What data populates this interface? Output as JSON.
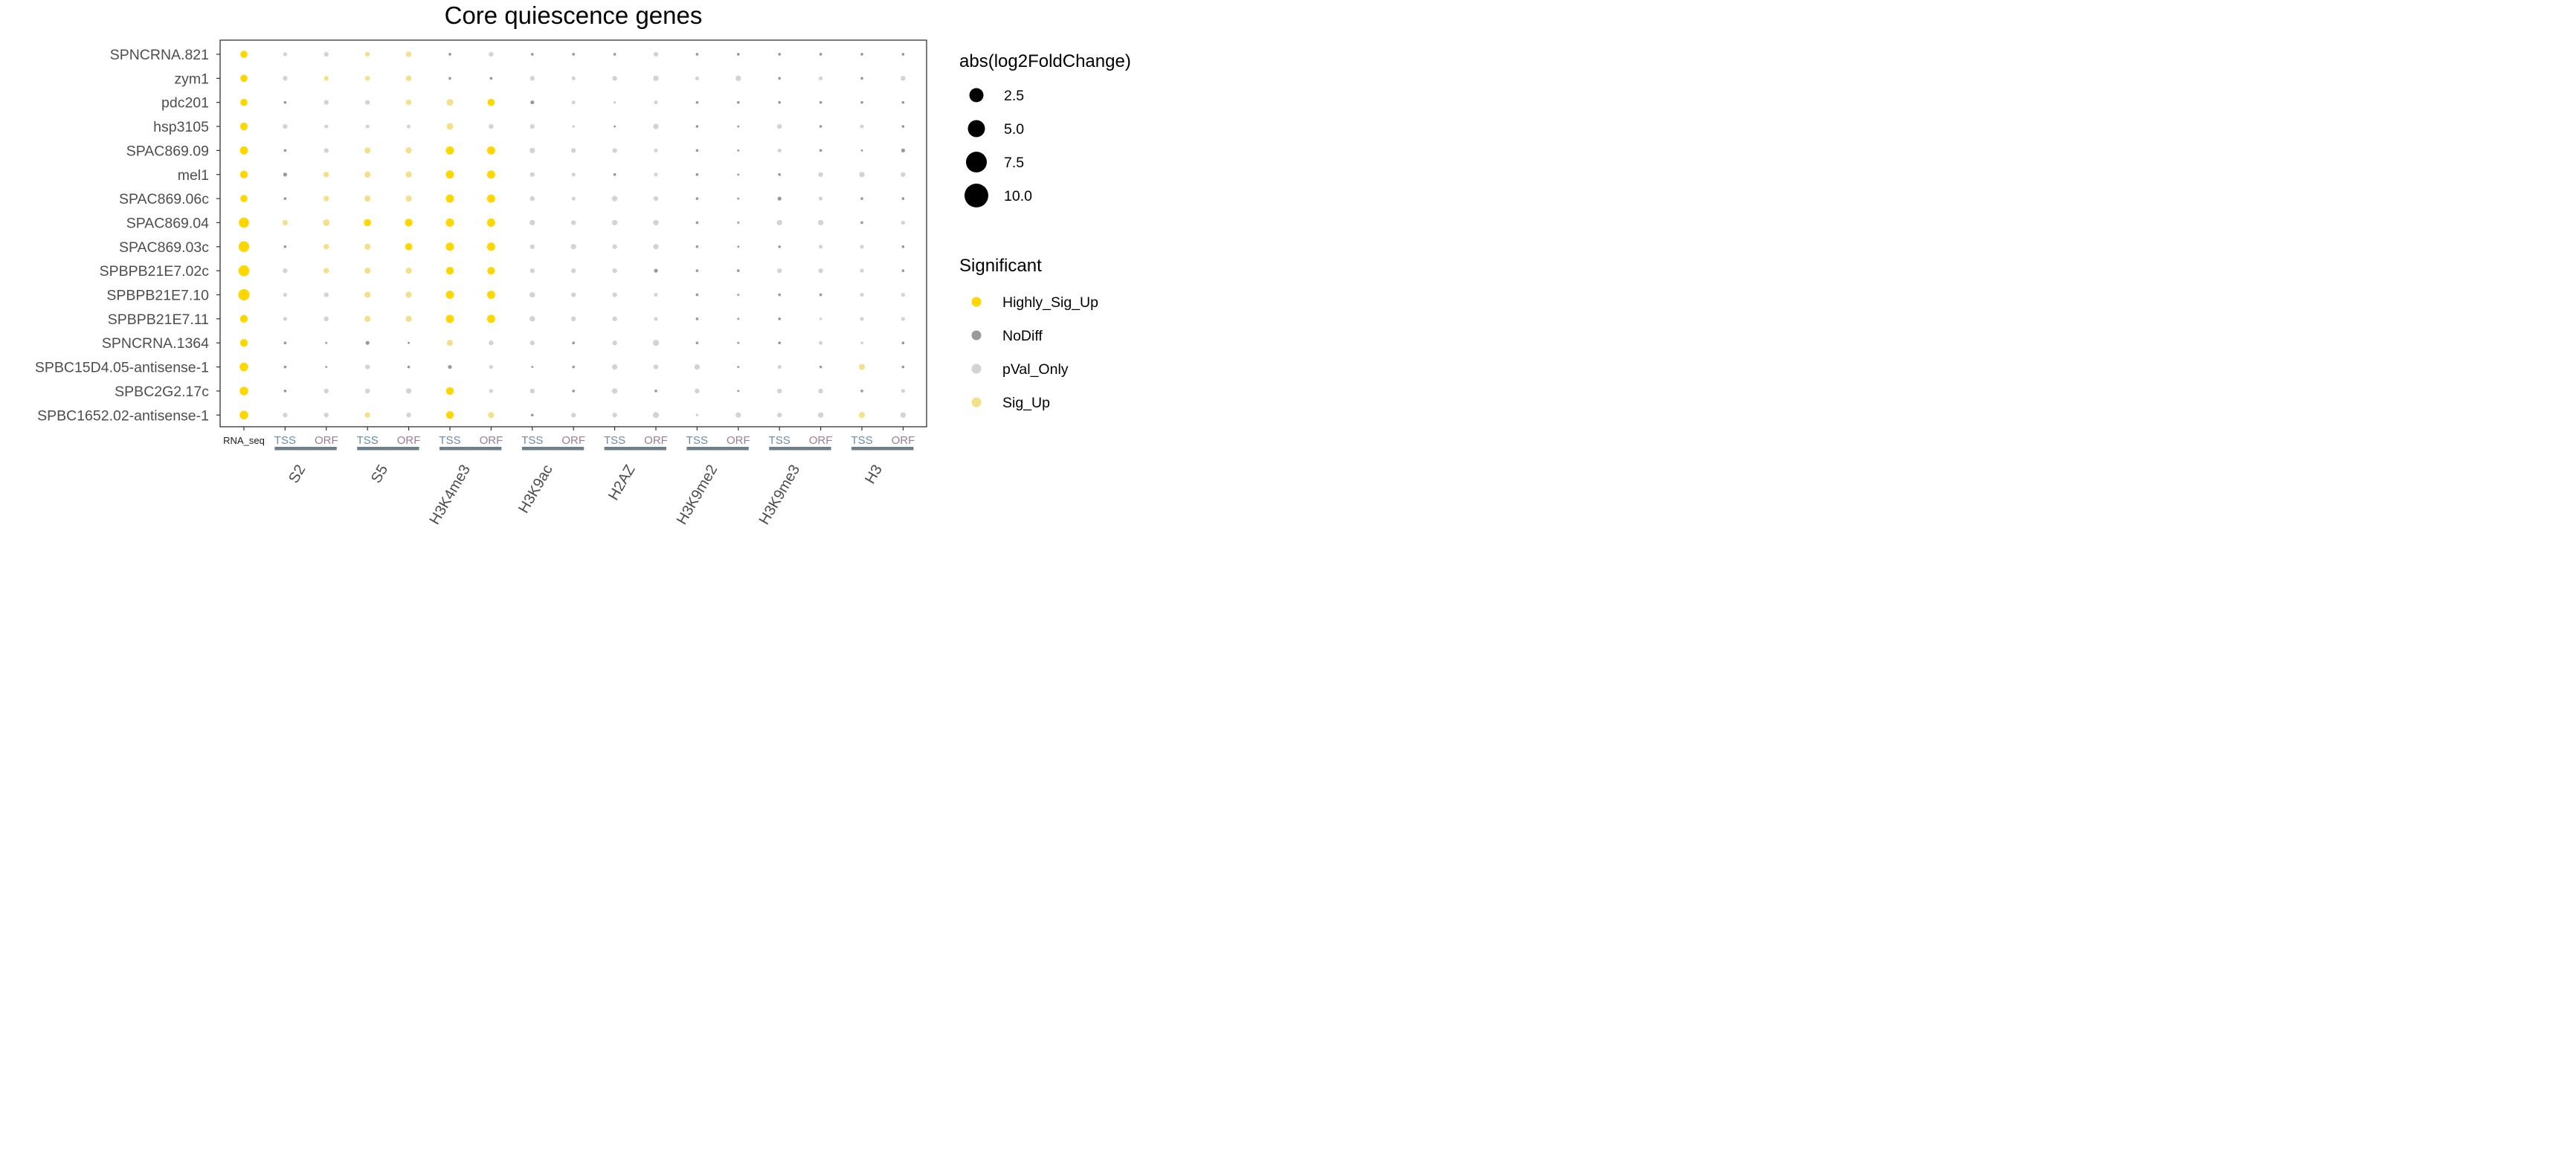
{
  "chart_data": {
    "type": "dot",
    "title": "Core quiescence genes",
    "genes": [
      "SPNCRNA.821",
      "zym1",
      "pdc201",
      "hsp3105",
      "SPAC869.09",
      "mel1",
      "SPAC869.06c",
      "SPAC869.04",
      "SPAC869.03c",
      "SPBPB21E7.02c",
      "SPBPB21E7.10",
      "SPBPB21E7.11",
      "SPNCRNA.1364",
      "SPBC15D4.05-antisense-1",
      "SPBC2G2.17c",
      "SPBC1652.02-antisense-1"
    ],
    "columns": [
      "RNA_seq",
      "TSS",
      "ORF",
      "TSS",
      "ORF",
      "TSS",
      "ORF",
      "TSS",
      "ORF",
      "TSS",
      "ORF",
      "TSS",
      "ORF",
      "TSS",
      "ORF",
      "TSS",
      "ORF"
    ],
    "groups": [
      "S2",
      "S5",
      "H3K4me3",
      "H3K9ac",
      "H2AZ",
      "H3K9me2",
      "H3K9me3",
      "H3"
    ],
    "size_legend": {
      "title": "abs(log2FoldChange)",
      "values": [
        2.5,
        5.0,
        7.5,
        10.0
      ],
      "labels": [
        "2.5",
        "5.0",
        "7.5",
        "10.0"
      ]
    },
    "color_legend": {
      "title": "Significant",
      "categories": [
        {
          "key": "H",
          "label": "Highly_Sig_Up",
          "color": "#FFD700"
        },
        {
          "key": "N",
          "label": "NoDiff",
          "color": "#999999"
        },
        {
          "key": "P",
          "label": "pVal_Only",
          "color": "#D3D3D3"
        },
        {
          "key": "S",
          "label": "Sig_Up",
          "color": "#F3E088"
        }
      ]
    },
    "significance": [
      "H P P S S N P N N N P N N N N N N",
      "H P S S S N N P P P P P P N P N P",
      "H N P P S S H N P P P N N N N N N",
      "H P P P P S P P P N P N N P N P N",
      "H N P S S H H P P P P N N P N N N",
      "H N S S S H H P P N P N N N P P P",
      "H N S S S H H P P P P N N N P N N",
      "H S S H H H H P P P P N N P P N P",
      "H N S S H H H P P P P N N N P P N",
      "H P S S S H H P P P N N N P P P N",
      "H P P S S H H P P P P N N N N P P",
      "H P P S S H H P P P P N N N P P P",
      "H N N N N S P P N P P N N N P P N",
      "H N N P N N P N N P P P N P N S N",
      "H N P P P H P P N P N P N P P N P",
      "H P P S P H S N P P P P P P P S P"
    ],
    "magnitude": [
      "3.5 1 1.5 1.5 2 0.5 1.5 0.5 0.5 0.5 1.5 0.5 0.5 0.5 0.5 0.5 0.5",
      "3.5 1.5 1.5 1.5 2 0.5 0.5 1.5 1 1.5 2 1 2 0.5 1 0.5 1.5",
      "3.5 0.5 1.5 1.5 2 3 3.5 1 1 0.5 1 0.5 0.5 0.5 0.5 0.5 0.5",
      "4 1.5 1 1 1 3 1.5 1.5 0.5 0.3 2 0.5 0.3 1.5 0.5 1 0.5",
      "4.5 0.5 1.5 2.5 2.5 4.5 4.5 2 1.5 1.5 1 0.5 0.3 1 0.5 0.3 1",
      "4 1 2 2.5 2.5 4.5 4.5 1.5 1 0.5 1 0.5 0.3 0.5 1.5 2 1.5",
      "3.5 0.5 2 2.5 2.5 4.5 4.5 1.5 1 2 1.5 0.5 0.3 1 1 0.5 0.5",
      "7 2 3 3.5 4 4.5 4.5 2 1.5 2 2 0.5 0.3 2 2 0.5 1",
      "7.5 0.5 2 2.5 3.5 4.5 4.5 1.5 2 1.5 2 0.5 0.3 0.5 1 1 0.5",
      "8 1.5 2 2.5 2.5 4 4 1.5 1.5 1.5 1 0.5 0.5 1.5 1.5 1 0.5",
      "8.5 1 1.5 2.5 2.5 4.5 4.5 2 1.5 1.5 1 0.5 0.3 0.5 0.5 1 1",
      "4 1 1.5 2.5 2.5 4.5 4.5 2 1.5 1.5 1 0.5 0.3 0.5 0.5 1 1",
      "4 0.5 0.3 1 0.3 2.5 1.5 1.5 0.5 1.5 2.5 0.5 0.3 0.5 1 0.5 0.5",
      "5 0.5 0.3 1.5 0.5 1 1 0.3 0.5 2 1.5 2 0.3 1 0.5 2.5 0.5",
      "5 0.5 1.5 1.5 2 4 1 1.5 0.5 2 0.5 1.5 0.3 1.5 1.5 0.5 1",
      "5 1.5 1.5 2 1.5 4 2.5 0.5 1.5 1.5 2.5 0.5 2 1.5 2 2.5 2"
    ]
  }
}
